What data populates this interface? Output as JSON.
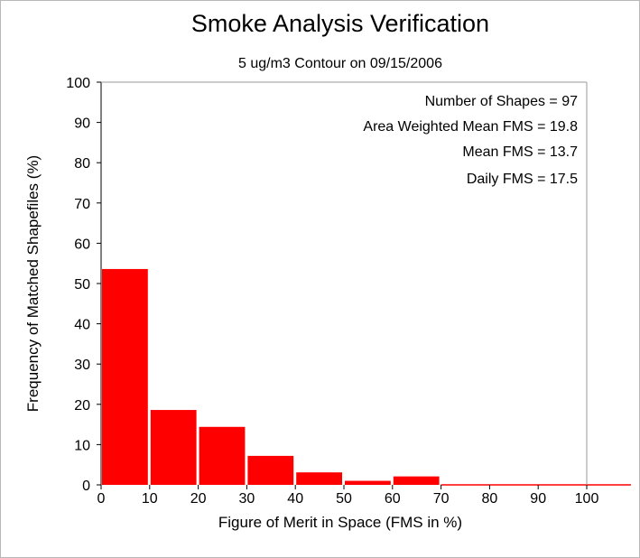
{
  "chart_data": {
    "type": "bar",
    "title": "Smoke Analysis Verification",
    "subtitle": "5 ug/m3 Contour on 09/15/2006",
    "xlabel": "Figure of Merit in Space (FMS in %)",
    "ylabel": "Frequency of Matched Shapefiles (%)",
    "xlim": [
      0,
      110
    ],
    "ylim": [
      0,
      100
    ],
    "x_ticks": [
      0,
      10,
      20,
      30,
      40,
      50,
      60,
      70,
      80,
      90,
      100
    ],
    "y_ticks": [
      0,
      10,
      20,
      30,
      40,
      50,
      60,
      70,
      80,
      90,
      100
    ],
    "bin_width": 10,
    "bin_starts": [
      0,
      10,
      20,
      30,
      40,
      50,
      60,
      70,
      80,
      90,
      100
    ],
    "values": [
      53.6,
      18.6,
      14.4,
      7.2,
      3.1,
      1.0,
      2.1,
      0,
      0,
      0,
      0
    ],
    "bar_color": "#ff0000",
    "grid": false,
    "annotations": [
      "Number of Shapes = 97",
      "Area Weighted Mean FMS = 19.8",
      "Mean FMS = 13.7",
      "Daily FMS = 17.5"
    ]
  }
}
